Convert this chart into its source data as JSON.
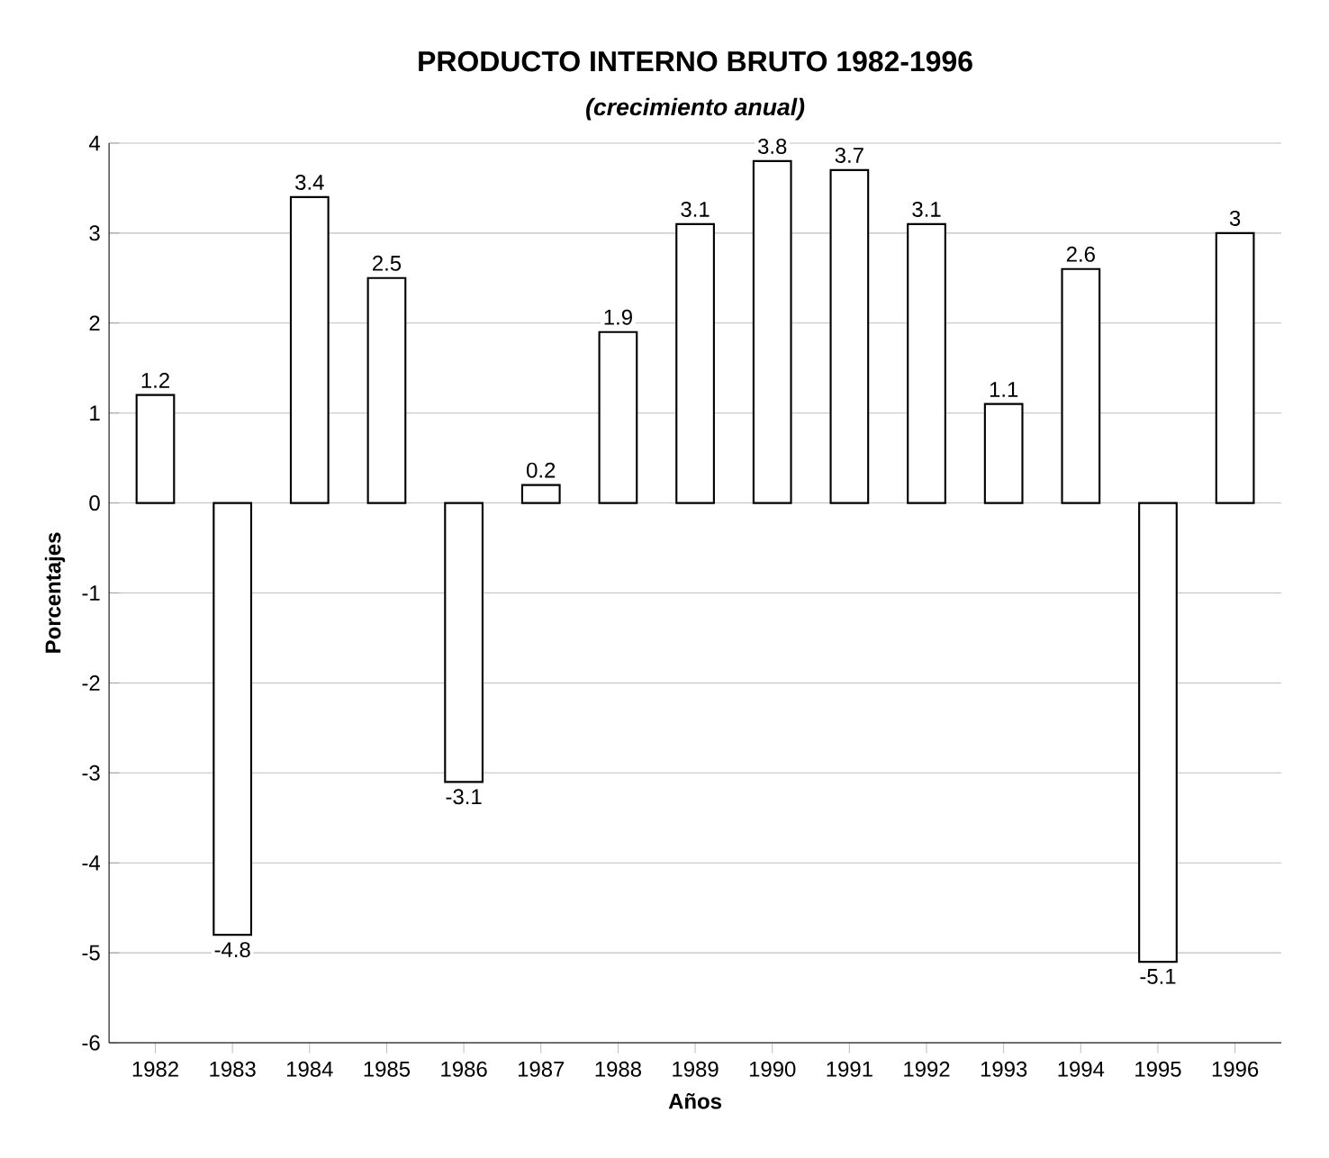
{
  "chart_data": {
    "type": "bar",
    "title": "PRODUCTO INTERNO BRUTO 1982-1996",
    "subtitle": "(crecimiento anual)",
    "xlabel": "Años",
    "ylabel": "Porcentajes",
    "categories": [
      "1982",
      "1983",
      "1984",
      "1985",
      "1986",
      "1987",
      "1988",
      "1989",
      "1990",
      "1991",
      "1992",
      "1993",
      "1994",
      "1995",
      "1996"
    ],
    "values": [
      1.2,
      -4.8,
      3.4,
      2.5,
      -3.1,
      0.2,
      1.9,
      3.1,
      3.8,
      3.7,
      3.1,
      1.1,
      2.6,
      -5.1,
      3
    ],
    "color": "#ffffff",
    "ylim": [
      -6,
      4
    ],
    "yticks": [
      -6,
      -5,
      -4,
      -3,
      -2,
      -1,
      0,
      1,
      2,
      3,
      4
    ],
    "grid": "y",
    "data_labels": true
  }
}
